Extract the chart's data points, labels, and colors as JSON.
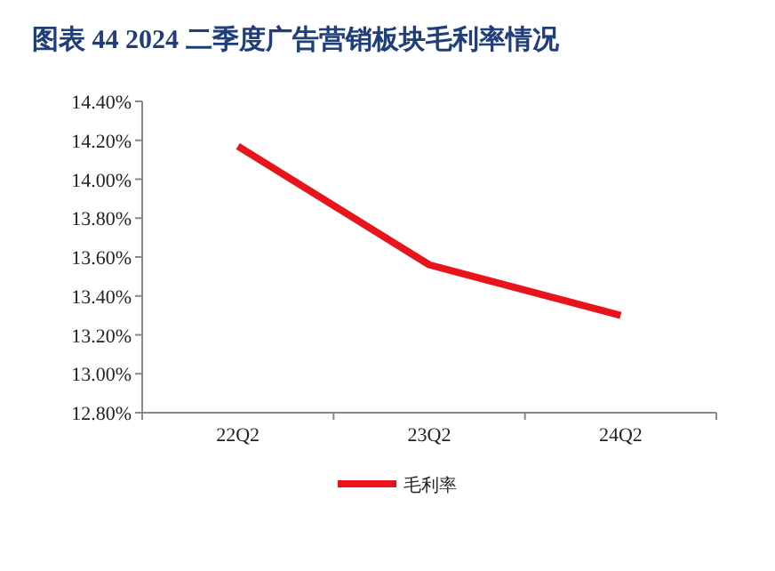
{
  "chart_data": {
    "type": "line",
    "title": "图表 44  2024 二季度广告营销板块毛利率情况",
    "categories": [
      "22Q2",
      "23Q2",
      "24Q2"
    ],
    "series": [
      {
        "name": "毛利率",
        "color": "#e8141b",
        "values": [
          14.17,
          13.56,
          13.3
        ]
      }
    ],
    "ylim": [
      12.8,
      14.4
    ],
    "yticks": [
      {
        "value": 12.8,
        "label": "12.80%"
      },
      {
        "value": 13.0,
        "label": "13.00%"
      },
      {
        "value": 13.2,
        "label": "13.20%"
      },
      {
        "value": 13.4,
        "label": "13.40%"
      },
      {
        "value": 13.6,
        "label": "13.60%"
      },
      {
        "value": 13.8,
        "label": "13.80%"
      },
      {
        "value": 14.0,
        "label": "14.00%"
      },
      {
        "value": 14.2,
        "label": "14.20%"
      },
      {
        "value": 14.4,
        "label": "14.40%"
      }
    ],
    "legend": "bottom",
    "grid": false,
    "marker": "none",
    "line_style": "solid"
  }
}
